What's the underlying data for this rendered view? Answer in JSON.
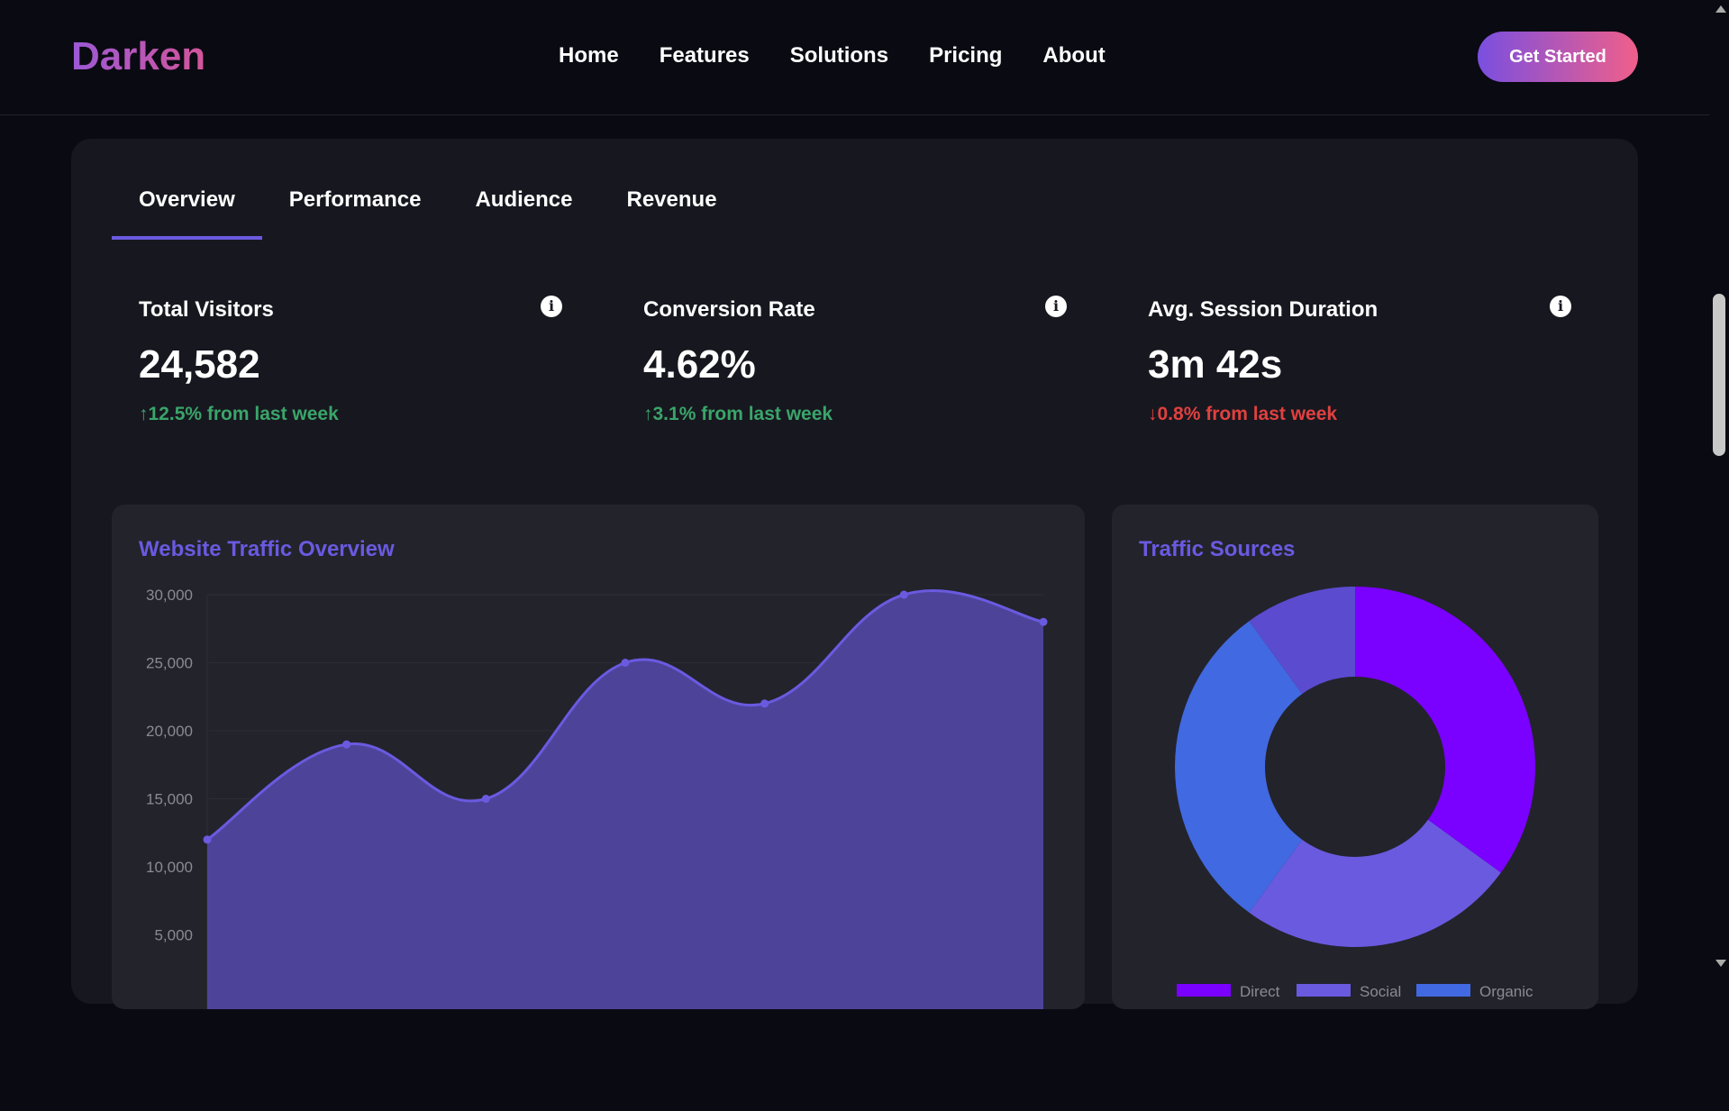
{
  "brand": {
    "name": "Darken"
  },
  "nav": {
    "items": [
      "Home",
      "Features",
      "Solutions",
      "Pricing",
      "About"
    ],
    "cta": "Get Started"
  },
  "tabs": [
    "Overview",
    "Performance",
    "Audience",
    "Revenue"
  ],
  "active_tab": "Overview",
  "stats": [
    {
      "title": "Total Visitors",
      "value": "24,582",
      "change": "↑12.5% from last week",
      "direction": "up"
    },
    {
      "title": "Conversion Rate",
      "value": "4.62%",
      "change": "↑3.1% from last week",
      "direction": "up"
    },
    {
      "title": "Avg. Session Duration",
      "value": "3m 42s",
      "change": "↓0.8% from last week",
      "direction": "down"
    }
  ],
  "traffic_card": {
    "title": "Website Traffic Overview"
  },
  "sources_card": {
    "title": "Traffic Sources"
  },
  "colors": {
    "accent": "#6a5ae0",
    "up": "#3aa56a",
    "down": "#e0413f",
    "direct": "#7a00ff",
    "social": "#6a5ae0",
    "organic": "#4169e1",
    "other": "#5b4bcf"
  },
  "chart_data": [
    {
      "type": "area",
      "title": "Website Traffic Overview",
      "values": [
        12000,
        19000,
        15000,
        25000,
        22000,
        30000,
        28000
      ],
      "ylim": [
        0,
        30000
      ],
      "yticks": [
        "30,000",
        "25,000",
        "20,000",
        "15,000",
        "10,000",
        "5,000"
      ],
      "grid": true
    },
    {
      "type": "pie",
      "title": "Traffic Sources",
      "categories": [
        "Direct",
        "Social",
        "Organic",
        ""
      ],
      "values": [
        35,
        25,
        30,
        10
      ],
      "legend": "bottom"
    }
  ]
}
